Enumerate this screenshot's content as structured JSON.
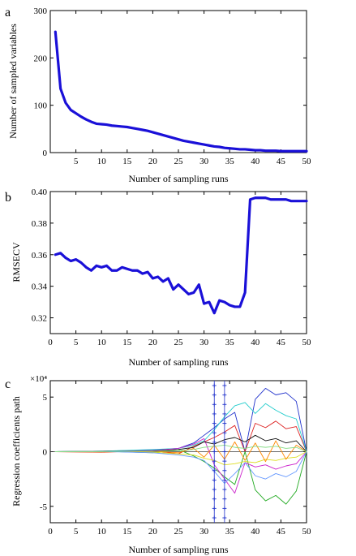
{
  "chart_data": [
    {
      "panel": "a",
      "type": "line",
      "title": "",
      "xlabel": "Number of sampling runs",
      "ylabel": "Number of sampled variables",
      "xlim": [
        0,
        50
      ],
      "ylim": [
        0,
        300
      ],
      "xticks": [
        5,
        10,
        15,
        20,
        25,
        30,
        35,
        40,
        45,
        50
      ],
      "yticks": [
        0,
        100,
        200,
        300
      ],
      "grid": false,
      "series": [
        {
          "color": "#1a10d8",
          "x": [
            1,
            2,
            3,
            4,
            5,
            6,
            7,
            8,
            9,
            10,
            11,
            12,
            13,
            14,
            15,
            16,
            17,
            18,
            19,
            20,
            21,
            22,
            23,
            24,
            25,
            26,
            27,
            28,
            29,
            30,
            31,
            32,
            33,
            34,
            35,
            36,
            37,
            38,
            39,
            40,
            41,
            42,
            43,
            44,
            45,
            46,
            47,
            48,
            49,
            50
          ],
          "y": [
            255,
            135,
            105,
            90,
            83,
            76,
            70,
            65,
            61,
            60,
            59,
            57,
            56,
            55,
            54,
            52,
            50,
            48,
            46,
            43,
            40,
            37,
            34,
            31,
            28,
            25,
            23,
            21,
            19,
            17,
            15,
            13,
            12,
            10,
            9,
            8,
            7,
            7,
            6,
            5,
            5,
            4,
            4,
            4,
            3,
            3,
            3,
            3,
            3,
            3
          ]
        }
      ]
    },
    {
      "panel": "b",
      "type": "line",
      "title": "",
      "xlabel": "Number of sampling runs",
      "ylabel": "RMSECV",
      "xlim": [
        0,
        50
      ],
      "ylim": [
        0.31,
        0.4
      ],
      "xticks": [
        0,
        5,
        10,
        15,
        20,
        25,
        30,
        35,
        40,
        45,
        50
      ],
      "yticks": [
        0.32,
        0.34,
        0.36,
        0.38,
        0.4
      ],
      "ytick_labels": [
        "0.32",
        "0.34",
        "0.36",
        "0.38",
        "0.40"
      ],
      "grid": false,
      "series": [
        {
          "color": "#1a10d8",
          "x": [
            1,
            2,
            3,
            4,
            5,
            6,
            7,
            8,
            9,
            10,
            11,
            12,
            13,
            14,
            15,
            16,
            17,
            18,
            19,
            20,
            21,
            22,
            23,
            24,
            25,
            26,
            27,
            28,
            29,
            30,
            31,
            32,
            33,
            34,
            35,
            36,
            37,
            38,
            39,
            40,
            41,
            42,
            43,
            44,
            45,
            46,
            47,
            48,
            49,
            50
          ],
          "y": [
            0.36,
            0.361,
            0.358,
            0.356,
            0.357,
            0.355,
            0.352,
            0.35,
            0.353,
            0.352,
            0.353,
            0.35,
            0.35,
            0.352,
            0.351,
            0.35,
            0.35,
            0.348,
            0.349,
            0.345,
            0.346,
            0.343,
            0.345,
            0.338,
            0.341,
            0.338,
            0.335,
            0.336,
            0.341,
            0.329,
            0.33,
            0.323,
            0.331,
            0.33,
            0.328,
            0.327,
            0.327,
            0.336,
            0.395,
            0.396,
            0.396,
            0.396,
            0.395,
            0.395,
            0.395,
            0.395,
            0.394,
            0.394,
            0.394,
            0.394
          ]
        }
      ]
    },
    {
      "panel": "c",
      "type": "line",
      "title": "",
      "xlabel": "Number of sampling runs",
      "ylabel": "Regression coefficients path",
      "exponent_label": "×10⁴",
      "xlim": [
        0,
        50
      ],
      "ylim": [
        -6.5,
        6.5
      ],
      "xticks": [
        0,
        5,
        10,
        15,
        20,
        25,
        30,
        35,
        40,
        45,
        50
      ],
      "yticks": [
        -5,
        0,
        5
      ],
      "grid": false,
      "markers": {
        "x": [
          32,
          34
        ],
        "color": "#2233cc",
        "symbol": "*"
      },
      "series": [
        {
          "color": "#2233cc",
          "x": [
            1,
            10,
            20,
            25,
            28,
            30,
            32,
            34,
            36,
            38,
            40,
            42,
            44,
            46,
            48,
            50
          ],
          "y": [
            0,
            0.05,
            0.15,
            0.3,
            0.8,
            1.5,
            2.2,
            3.0,
            3.6,
            0.0,
            4.8,
            5.8,
            5.2,
            5.4,
            4.6,
            0
          ]
        },
        {
          "color": "#dd2222",
          "x": [
            1,
            10,
            20,
            25,
            28,
            30,
            32,
            34,
            36,
            38,
            40,
            42,
            44,
            46,
            48,
            50
          ],
          "y": [
            0,
            -0.05,
            0.1,
            -0.2,
            0.5,
            0.9,
            1.3,
            1.8,
            2.4,
            0.0,
            2.6,
            2.2,
            2.8,
            2.1,
            2.3,
            0
          ]
        },
        {
          "color": "#22aa22",
          "x": [
            1,
            10,
            20,
            25,
            28,
            30,
            32,
            34,
            36,
            38,
            40,
            42,
            44,
            46,
            48,
            50
          ],
          "y": [
            0,
            0.05,
            -0.1,
            0.2,
            -0.4,
            -0.9,
            -1.5,
            -2.3,
            -3.0,
            0.0,
            -3.5,
            -4.5,
            -4.0,
            -4.8,
            -3.6,
            0
          ]
        },
        {
          "color": "#22cccc",
          "x": [
            1,
            10,
            20,
            25,
            28,
            30,
            32,
            34,
            36,
            38,
            40,
            42,
            44,
            46,
            48,
            50
          ],
          "y": [
            0,
            0.05,
            0.2,
            0.3,
            0.6,
            1.0,
            2.0,
            3.2,
            4.2,
            4.5,
            3.5,
            4.4,
            3.8,
            3.3,
            3.0,
            0
          ]
        },
        {
          "color": "#cc22cc",
          "x": [
            1,
            10,
            20,
            25,
            28,
            30,
            32,
            34,
            36,
            38,
            40,
            42,
            44,
            46,
            48,
            50
          ],
          "y": [
            0,
            0.02,
            0.1,
            0.3,
            0.7,
            1.2,
            -1.2,
            -2.5,
            -3.8,
            -1.0,
            -1.4,
            -1.2,
            -1.6,
            -1.3,
            -1.1,
            0
          ]
        },
        {
          "color": "#dddd22",
          "x": [
            1,
            10,
            20,
            25,
            28,
            30,
            32,
            34,
            36,
            38,
            40,
            42,
            44,
            46,
            48,
            50
          ],
          "y": [
            0,
            0.02,
            -0.05,
            -0.2,
            -0.3,
            -0.6,
            -0.8,
            -1.2,
            -1.1,
            -0.9,
            -1.0,
            -0.7,
            -0.8,
            -0.6,
            -0.5,
            0
          ]
        },
        {
          "color": "#111111",
          "x": [
            1,
            10,
            20,
            25,
            28,
            30,
            32,
            34,
            36,
            38,
            40,
            42,
            44,
            46,
            48,
            50
          ],
          "y": [
            0,
            0.03,
            0.06,
            0.2,
            0.4,
            0.9,
            0.7,
            1.1,
            1.3,
            0.9,
            1.5,
            1.0,
            1.2,
            0.8,
            1.0,
            0
          ]
        },
        {
          "color": "#ff8800",
          "x": [
            1,
            10,
            20,
            25,
            28,
            30,
            32,
            34,
            36,
            38,
            40,
            42,
            44,
            46,
            48,
            50
          ],
          "y": [
            0,
            -0.02,
            0.04,
            -0.1,
            0.3,
            -0.5,
            0.6,
            -0.7,
            0.9,
            -0.8,
            0.8,
            -0.9,
            1.0,
            -0.7,
            0.6,
            0
          ]
        },
        {
          "color": "#6699ff",
          "x": [
            1,
            10,
            20,
            25,
            28,
            30,
            32,
            34,
            36,
            38,
            40,
            42,
            44,
            46,
            48,
            50
          ],
          "y": [
            0,
            0.02,
            -0.1,
            -0.3,
            -0.5,
            -0.8,
            -1.8,
            -2.9,
            -2.0,
            -1.0,
            -2.2,
            -2.5,
            -2.0,
            -2.3,
            -1.8,
            0
          ]
        },
        {
          "color": "#88dd88",
          "x": [
            1,
            10,
            20,
            25,
            28,
            30,
            32,
            34,
            36,
            38,
            40,
            42,
            44,
            46,
            48,
            50
          ],
          "y": [
            0,
            0.01,
            0.05,
            0.1,
            0.2,
            0.4,
            0.5,
            0.6,
            0.4,
            0.3,
            0.5,
            0.4,
            0.5,
            0.3,
            0.4,
            0
          ]
        }
      ]
    }
  ]
}
